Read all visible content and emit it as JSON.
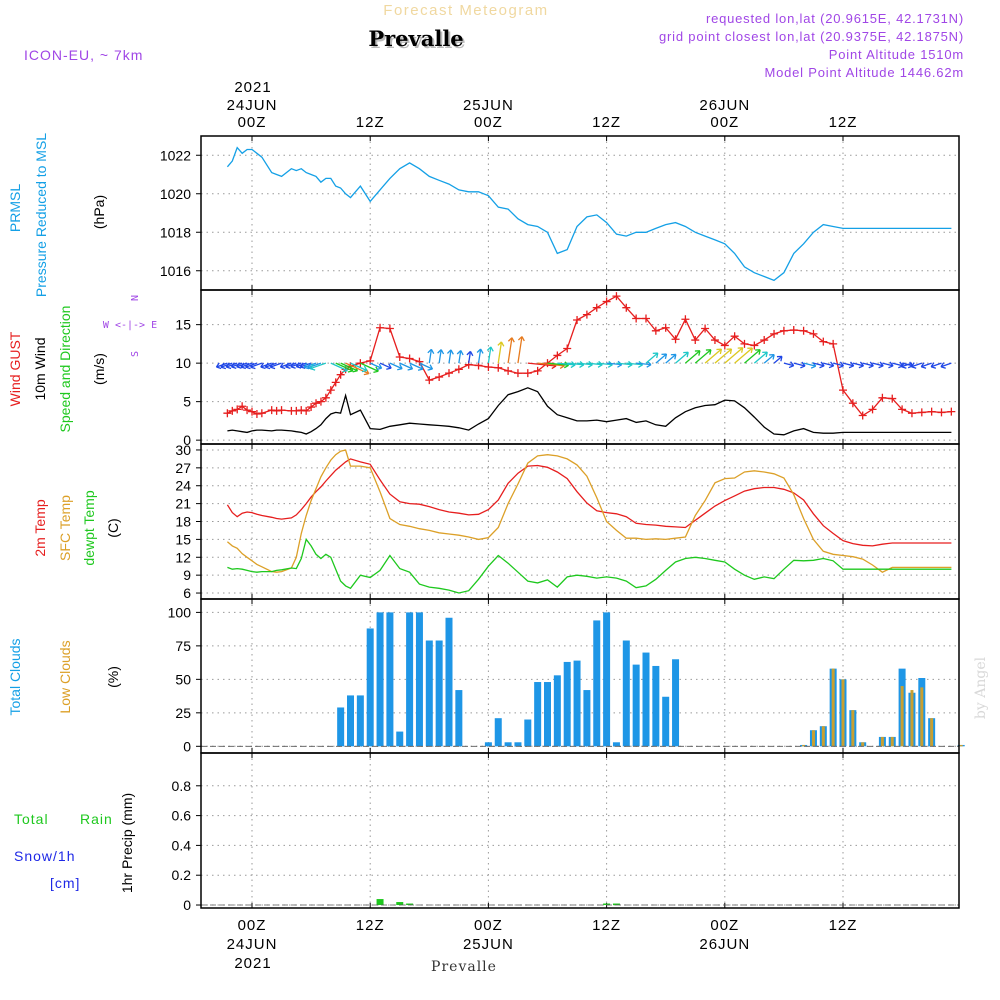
{
  "header": {
    "subtitle": "Forecast Meteogram",
    "title": "Prevalle",
    "model": "ICON-EU, ~ 7km",
    "requested": "requested lon,lat (20.9615E, 42.1731N)",
    "grid": "grid point closest lon,lat (20.9375E, 42.1875N)",
    "alt": "Point Altitude 1510m",
    "model_alt": "Model Point Altitude 1446.62m",
    "year_top": "2021",
    "year_bottom": "2021",
    "footer": "Prevalle",
    "watermark": "by Angel"
  },
  "time_axis": {
    "ticks": [
      {
        "h": 0,
        "label": "00Z",
        "date": "24JUN"
      },
      {
        "h": 12,
        "label": "12Z",
        "date": ""
      },
      {
        "h": 24,
        "label": "00Z",
        "date": "25JUN"
      },
      {
        "h": 36,
        "label": "12Z",
        "date": ""
      },
      {
        "h": 48,
        "label": "00Z",
        "date": "26JUN"
      },
      {
        "h": 60,
        "label": "12Z",
        "date": ""
      }
    ]
  },
  "panel_labels": {
    "p1": {
      "a": "PRMSL",
      "b": "Pressure Reduced to MSL",
      "unit": "(hPa)"
    },
    "p2": {
      "a": "Wind GUST",
      "b": "10m Wind",
      "c": "Speed and Direction",
      "unit": "(m/s)",
      "compass": [
        "N",
        "W <-|-> E",
        "S"
      ]
    },
    "p3": {
      "a": "2m Temp",
      "b": "SFC Temp",
      "c": "dewpt Temp",
      "unit": "(C)"
    },
    "p4": {
      "a": "Total Clouds",
      "b": "Low Clouds",
      "unit": "(%)"
    },
    "p5": {
      "a": "Total",
      "b": "Rain",
      "c": "Snow/1h",
      "d": "[cm]",
      "unit": "1hr Precip (mm)"
    }
  },
  "chart_data": [
    {
      "type": "line",
      "title": "PRMSL Pressure Reduced to MSL",
      "ylabel": "(hPa)",
      "ylim": [
        1015,
        1023
      ],
      "yticks": [
        1016,
        1018,
        1020,
        1022
      ],
      "x_hours": [
        -2.5,
        -2,
        -1.5,
        -1,
        -0.5,
        0,
        0.5,
        1,
        2,
        2.5,
        3,
        4,
        4.5,
        5,
        5.5,
        6,
        6.5,
        7,
        7.5,
        8,
        8.5,
        9,
        9.5,
        10,
        11,
        12,
        13,
        14,
        15,
        16,
        17,
        18,
        19,
        20,
        21,
        22,
        23,
        24,
        25,
        26,
        27,
        28,
        29,
        30,
        31,
        32,
        33,
        34,
        35,
        36,
        37,
        38,
        39,
        40,
        41,
        42,
        43,
        44,
        45,
        46,
        47,
        48,
        49,
        50,
        51,
        52,
        53,
        54,
        55,
        56,
        57,
        58,
        59,
        60,
        61,
        62,
        63,
        64,
        65,
        66,
        67,
        68,
        69,
        70,
        71
      ],
      "series": [
        {
          "name": "PRMSL",
          "color": "#14a0e6",
          "values": [
            1021.4,
            1021.7,
            1022.4,
            1022.1,
            1022.3,
            1022.3,
            1022.1,
            1021.9,
            1021.1,
            1021.0,
            1020.9,
            1021.3,
            1021.2,
            1021.3,
            1021.1,
            1021.0,
            1020.9,
            1020.6,
            1020.8,
            1020.8,
            1020.4,
            1020.3,
            1020.0,
            1019.8,
            1020.4,
            1019.6,
            1020.2,
            1020.8,
            1021.3,
            1021.6,
            1021.3,
            1020.9,
            1020.7,
            1020.5,
            1020.2,
            1020.1,
            1020.1,
            1019.9,
            1019.3,
            1019.2,
            1018.7,
            1018.4,
            1018.3,
            1018.0,
            1016.9,
            1017.1,
            1018.3,
            1018.8,
            1018.9,
            1018.5,
            1017.9,
            1017.8,
            1018.0,
            1018.0,
            1018.2,
            1018.4,
            1018.5,
            1018.3,
            1018.0,
            1017.8,
            1017.6,
            1017.4,
            1016.9,
            1016.2,
            1015.9,
            1015.7,
            1015.5,
            1015.9,
            1016.9,
            1017.4,
            1018.0,
            1018.4,
            1018.3,
            1018.2,
            1018.2,
            1018.2,
            1018.2,
            1018.2,
            1018.2,
            1018.2,
            1018.2,
            1018.2,
            1018.2,
            1018.2,
            1018.2
          ]
        }
      ]
    },
    {
      "type": "line",
      "title": "Wind GUST / 10m Wind Speed and Direction",
      "ylabel": "(m/s)",
      "ylim": [
        -0.5,
        19.5
      ],
      "yticks": [
        0,
        5,
        10,
        15
      ],
      "x_hours": [
        -2.5,
        -2,
        -1.5,
        -1,
        -0.5,
        0,
        0.5,
        1,
        2,
        2.5,
        3,
        4,
        4.5,
        5,
        5.5,
        6,
        6.5,
        7,
        7.5,
        8,
        8.5,
        9,
        9.5,
        10,
        11,
        12,
        13,
        14,
        15,
        16,
        17,
        18,
        19,
        20,
        21,
        22,
        23,
        24,
        25,
        26,
        27,
        28,
        29,
        30,
        31,
        32,
        33,
        34,
        35,
        36,
        37,
        38,
        39,
        40,
        41,
        42,
        43,
        44,
        45,
        46,
        47,
        48,
        49,
        50,
        51,
        52,
        53,
        54,
        55,
        56,
        57,
        58,
        59,
        60,
        61,
        62,
        63,
        64,
        65,
        66,
        67,
        68,
        69,
        70,
        71
      ],
      "series": [
        {
          "name": "Wind GUST",
          "color": "#e61e1e",
          "marker": "+",
          "values": [
            3.5,
            3.8,
            4.0,
            4.4,
            3.9,
            3.7,
            3.4,
            3.5,
            3.9,
            3.8,
            3.9,
            3.8,
            3.8,
            3.9,
            3.8,
            4.3,
            4.8,
            5.0,
            5.5,
            6.5,
            7.5,
            8.5,
            9.2,
            9.6,
            10.0,
            10.3,
            14.6,
            14.5,
            10.8,
            10.6,
            10.2,
            7.8,
            8.2,
            8.7,
            9.2,
            9.8,
            9.7,
            9.5,
            9.4,
            9.0,
            8.7,
            8.7,
            9.0,
            10.0,
            11.0,
            11.9,
            15.6,
            16.3,
            17.2,
            18.0,
            18.7,
            17.2,
            15.8,
            15.8,
            14.2,
            14.6,
            13.1,
            15.7,
            13.0,
            14.5,
            13.0,
            12.3,
            13.5,
            12.5,
            12.3,
            13.0,
            13.8,
            14.2,
            14.3,
            14.2,
            13.8,
            12.8,
            12.5,
            6.5,
            4.8,
            3.2,
            4.0,
            5.5,
            5.4,
            4.0,
            3.5,
            3.6,
            3.7,
            3.6,
            3.7
          ]
        },
        {
          "name": "10m Wind",
          "color": "#000000",
          "values": [
            1.2,
            1.3,
            1.2,
            1.1,
            1.0,
            1.2,
            1.3,
            1.3,
            1.2,
            1.3,
            1.3,
            1.2,
            1.1,
            1.0,
            0.8,
            1.1,
            1.5,
            2.0,
            2.8,
            3.4,
            3.6,
            3.5,
            5.8,
            3.3,
            3.9,
            1.5,
            1.4,
            1.8,
            2.0,
            2.2,
            2.1,
            2.0,
            1.9,
            1.8,
            1.6,
            1.3,
            2.1,
            2.8,
            4.5,
            5.9,
            6.3,
            6.8,
            6.3,
            4.4,
            3.3,
            2.9,
            2.5,
            2.5,
            2.6,
            2.4,
            2.6,
            2.8,
            2.3,
            2.5,
            2.0,
            1.8,
            2.9,
            3.7,
            4.2,
            4.5,
            4.6,
            5.2,
            5.1,
            4.2,
            3.0,
            1.7,
            0.8,
            0.7,
            1.2,
            1.5,
            1.0,
            0.9,
            0.9,
            1.0,
            1.0,
            1.0,
            1.0,
            1.0,
            1.0,
            1.0,
            1.0,
            1.0,
            1.0,
            1.0,
            1.0
          ]
        }
      ],
      "compass": "W <-|-> E, N/S"
    },
    {
      "type": "line",
      "title": "2m Temp / SFC Temp / dewpt Temp",
      "ylabel": "(C)",
      "ylim": [
        5,
        31
      ],
      "yticks": [
        6,
        9,
        12,
        15,
        18,
        21,
        24,
        27,
        30
      ],
      "x_hours": [
        -2.5,
        -2,
        -1.5,
        -1,
        -0.5,
        0,
        0.5,
        1,
        2,
        2.5,
        3,
        4,
        4.5,
        5,
        5.5,
        6,
        6.5,
        7,
        7.5,
        8,
        8.5,
        9,
        9.5,
        10,
        11,
        12,
        13,
        14,
        15,
        16,
        17,
        18,
        19,
        20,
        21,
        22,
        23,
        24,
        25,
        26,
        27,
        28,
        29,
        30,
        31,
        32,
        33,
        34,
        35,
        36,
        37,
        38,
        39,
        40,
        41,
        42,
        43,
        44,
        45,
        46,
        47,
        48,
        49,
        50,
        51,
        52,
        53,
        54,
        55,
        56,
        57,
        58,
        59,
        60,
        61,
        62,
        63,
        64,
        65,
        66,
        67,
        68,
        69,
        70,
        71
      ],
      "series": [
        {
          "name": "2m Temp",
          "color": "#e61e1e",
          "values": [
            20.8,
            19.5,
            18.8,
            19.4,
            19.6,
            19.5,
            19.2,
            19.0,
            18.7,
            18.5,
            18.4,
            18.6,
            19.1,
            20.0,
            21.0,
            22.1,
            23.0,
            23.8,
            24.8,
            25.7,
            26.6,
            27.3,
            28.0,
            28.5,
            28.0,
            27.6,
            25.0,
            22.6,
            21.3,
            21.0,
            20.9,
            20.5,
            20.0,
            19.6,
            19.4,
            19.1,
            19.2,
            20.0,
            21.6,
            24.4,
            26.1,
            27.3,
            27.4,
            27.1,
            26.3,
            25.2,
            23.0,
            21.1,
            19.8,
            19.5,
            19.3,
            18.8,
            17.7,
            17.5,
            17.4,
            17.2,
            17.1,
            17.0,
            18.2,
            19.4,
            20.6,
            21.5,
            22.3,
            23.1,
            23.5,
            23.7,
            23.7,
            23.4,
            22.8,
            21.6,
            19.3,
            17.3,
            16.0,
            14.8,
            14.3,
            14.0,
            13.9,
            14.2,
            14.4,
            14.4,
            14.4,
            14.4,
            14.4,
            14.4,
            14.4
          ]
        },
        {
          "name": "SFC Temp",
          "color": "#dca028",
          "values": [
            14.6,
            13.9,
            13.5,
            12.6,
            12.0,
            11.4,
            10.8,
            10.4,
            9.6,
            9.5,
            9.6,
            10.2,
            12.0,
            16.0,
            19.0,
            21.5,
            23.5,
            25.5,
            27.0,
            28.3,
            29.2,
            29.8,
            30.0,
            27.3,
            27.3,
            27.0,
            23.0,
            18.5,
            17.5,
            17.2,
            16.8,
            16.5,
            16.1,
            15.9,
            15.7,
            15.4,
            15.0,
            15.3,
            17.0,
            21.0,
            24.3,
            27.8,
            29.0,
            29.2,
            29.0,
            28.5,
            27.5,
            25.6,
            22.0,
            18.0,
            16.5,
            15.2,
            15.2,
            15.0,
            15.1,
            15.0,
            15.2,
            15.4,
            19.0,
            21.5,
            24.5,
            25.2,
            25.3,
            26.3,
            26.5,
            26.3,
            26.0,
            25.3,
            22.5,
            18.5,
            15.0,
            13.0,
            12.5,
            12.3,
            12.1,
            11.7,
            10.7,
            9.5,
            10.3,
            10.3,
            10.3,
            10.3,
            10.3,
            10.3,
            10.3
          ]
        },
        {
          "name": "dewpt Temp",
          "color": "#1ec81e",
          "values": [
            10.3,
            10.0,
            10.1,
            10.0,
            9.8,
            9.6,
            9.5,
            9.6,
            9.6,
            9.8,
            9.9,
            10.2,
            10.1,
            11.8,
            15.0,
            13.9,
            12.5,
            11.8,
            12.5,
            12.0,
            10.0,
            8.0,
            7.2,
            6.8,
            9.0,
            8.6,
            9.8,
            12.3,
            10.1,
            9.5,
            7.5,
            7.0,
            6.8,
            6.5,
            6.0,
            6.4,
            8.3,
            10.5,
            12.3,
            11.0,
            9.5,
            8.0,
            7.7,
            8.2,
            7.0,
            8.7,
            9.0,
            8.8,
            8.5,
            8.7,
            8.5,
            8.0,
            6.9,
            7.2,
            8.3,
            9.8,
            11.2,
            11.8,
            12.0,
            11.8,
            11.5,
            11.2,
            10.0,
            9.0,
            8.3,
            8.7,
            8.4,
            10.0,
            11.5,
            11.4,
            11.5,
            11.8,
            11.4,
            10.0,
            10.0,
            10.0,
            10.0,
            10.0,
            10.0,
            10.0,
            10.0,
            10.0,
            10.0,
            10.0,
            10.0
          ]
        }
      ]
    },
    {
      "type": "bar",
      "title": "Total Clouds / Low Clouds",
      "ylabel": "(%)",
      "ylim": [
        -5,
        110
      ],
      "yticks": [
        0,
        25,
        50,
        75,
        100
      ],
      "categories_hours": [
        9,
        10,
        11,
        12,
        13,
        14,
        15,
        16,
        17,
        18,
        19,
        20,
        21,
        24,
        25,
        26,
        27,
        28,
        29,
        30,
        31,
        32,
        33,
        34,
        35,
        36,
        37,
        38,
        39,
        40,
        41,
        42,
        43,
        44,
        45,
        47,
        48,
        49,
        50,
        51,
        52,
        53,
        54,
        55,
        56,
        57,
        58,
        59,
        60,
        61,
        62,
        63,
        64,
        65,
        66,
        67,
        68,
        69,
        70,
        71,
        72
      ],
      "series": [
        {
          "name": "Total Clouds",
          "color": "#1e96e6",
          "values": [
            29,
            38,
            38,
            88,
            100,
            100,
            11,
            100,
            100,
            79,
            79,
            96,
            42,
            3,
            21,
            3,
            3,
            20,
            48,
            48,
            53,
            63,
            64,
            42,
            94,
            100,
            3,
            79,
            61,
            70,
            60,
            37,
            65,
            0,
            0,
            0,
            0,
            0,
            0,
            0,
            0,
            0,
            0,
            0,
            1,
            12,
            15,
            58,
            50,
            27,
            3,
            0,
            7,
            7,
            58,
            40,
            51,
            21,
            0,
            0,
            1
          ]
        },
        {
          "name": "Low Clouds",
          "color": "#c8a032",
          "values": [
            0,
            0,
            0,
            0,
            0,
            0,
            0,
            0,
            0,
            0,
            0,
            0,
            0,
            0,
            0,
            0,
            0,
            0,
            0,
            0,
            0,
            0,
            0,
            0,
            0,
            0,
            0,
            0,
            0,
            0,
            0,
            0,
            0,
            0,
            0,
            0,
            0,
            0,
            0,
            0,
            0,
            0,
            0,
            0,
            1,
            12,
            15,
            58,
            50,
            27,
            3,
            0,
            7,
            7,
            45,
            42,
            44,
            21,
            0,
            0,
            1
          ]
        }
      ]
    },
    {
      "type": "bar",
      "title": "1hr Precip (mm)",
      "ylabel": "1hr Precip (mm)",
      "ylim": [
        -0.02,
        1.02
      ],
      "yticks": [
        0,
        0.2,
        0.4,
        0.6,
        0.8
      ],
      "categories_hours": [
        13,
        15,
        16,
        36,
        37
      ],
      "series": [
        {
          "name": "Total Rain",
          "color": "#1ec81e",
          "values": [
            0.04,
            0.02,
            0.01,
            0.01,
            0.01
          ]
        }
      ]
    }
  ]
}
